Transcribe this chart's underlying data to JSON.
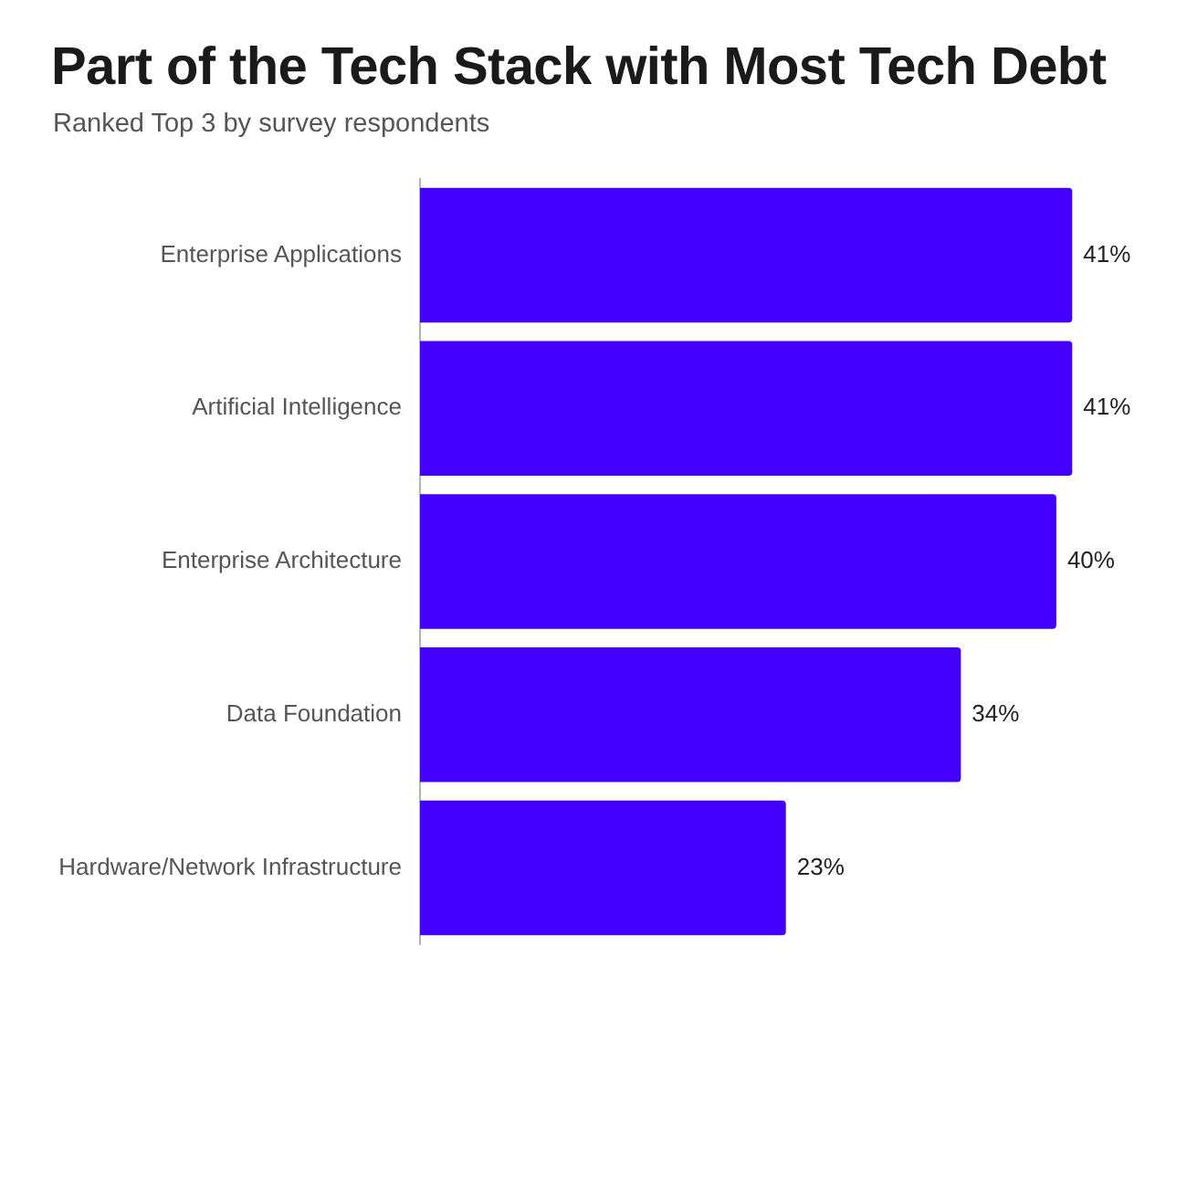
{
  "chart_data": {
    "type": "bar",
    "orientation": "horizontal",
    "title": "Part of the Tech Stack with Most Tech Debt",
    "subtitle": "Ranked Top 3 by survey respondents",
    "categories": [
      "Enterprise Applications",
      "Artificial Intelligence",
      "Enterprise Architecture",
      "Data Foundation",
      "Hardware/Network Infrastructure"
    ],
    "values": [
      41,
      41,
      40,
      34,
      23
    ],
    "color": "#4400ff",
    "value_labels": [
      "41%",
      "41%",
      "40%",
      "34%",
      "23%"
    ],
    "tick_labels": "y",
    "grid": false,
    "legend": false
  }
}
